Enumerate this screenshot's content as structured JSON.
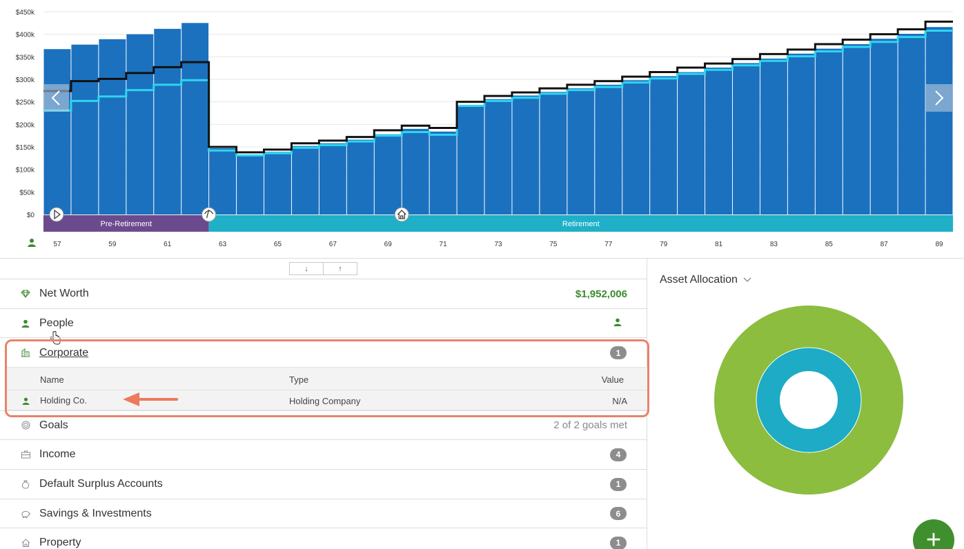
{
  "chart_data": {
    "type": "bar",
    "ylabels": [
      "$450k",
      "$400k",
      "$350k",
      "$300k",
      "$250k",
      "$200k",
      "$150k",
      "$100k",
      "$50k",
      "$0"
    ],
    "ylim": [
      0,
      450000
    ],
    "x_ages": [
      57,
      58,
      59,
      60,
      61,
      62,
      63,
      64,
      65,
      66,
      67,
      68,
      69,
      70,
      71,
      72,
      73,
      74,
      75,
      76,
      77,
      78,
      79,
      80,
      81,
      82,
      83,
      84,
      85,
      86,
      87,
      88,
      89
    ],
    "x_tick_labels": [
      "57",
      "59",
      "61",
      "63",
      "65",
      "67",
      "69",
      "71",
      "73",
      "75",
      "77",
      "79",
      "81",
      "83",
      "85",
      "87",
      "89"
    ],
    "series": [
      {
        "type": "bar",
        "values": [
          367000,
          377000,
          389000,
          400000,
          412000,
          425000,
          147000,
          133000,
          139000,
          152000,
          158000,
          166000,
          178000,
          190000,
          184000,
          242000,
          256000,
          264000,
          272000,
          280000,
          288000,
          298000,
          307000,
          316000,
          326000,
          336000,
          346000,
          357000,
          368000,
          378000,
          390000,
          401000,
          416000
        ]
      },
      {
        "type": "step",
        "values": [
          274000,
          296000,
          301000,
          314000,
          327000,
          338000,
          150000,
          138000,
          144000,
          158000,
          164000,
          172000,
          187000,
          197000,
          192000,
          250000,
          263000,
          271000,
          280000,
          288000,
          296000,
          306000,
          316000,
          326000,
          335000,
          345000,
          356000,
          366000,
          378000,
          388000,
          400000,
          411000,
          428000
        ]
      },
      {
        "type": "step",
        "values": [
          231000,
          252000,
          262000,
          276000,
          288000,
          298000,
          142000,
          131000,
          136000,
          148000,
          154000,
          162000,
          175000,
          183000,
          177000,
          241000,
          252000,
          259000,
          268000,
          276000,
          283000,
          293000,
          302000,
          312000,
          321000,
          331000,
          341000,
          351000,
          362000,
          372000,
          383000,
          394000,
          408000
        ]
      }
    ],
    "phases": [
      {
        "label": "Pre-Retirement",
        "color": "#6c4a8e",
        "start_index": 0,
        "end_index": 6
      },
      {
        "label": "Retirement",
        "color": "#1fb0c8",
        "start_index": 6,
        "end_index": 33
      }
    ],
    "colors": {
      "bar": "#1b71be",
      "line1": "#111111",
      "line2": "#2fd5f0"
    }
  },
  "nav": {
    "left": "<",
    "right": ">"
  },
  "toggles": {
    "down": "↓",
    "up": "↑"
  },
  "rows": {
    "net_worth": {
      "label": "Net Worth",
      "value": "$1,952,006"
    },
    "people": {
      "label": "People"
    },
    "corporate": {
      "label": "Corporate",
      "count": "1",
      "headers": {
        "name": "Name",
        "type": "Type",
        "value": "Value"
      },
      "items": [
        {
          "name": "Holding Co.",
          "type": "Holding Company",
          "value": "N/A"
        }
      ]
    },
    "goals": {
      "label": "Goals",
      "value": "2 of 2 goals met"
    },
    "income": {
      "label": "Income",
      "count": "4"
    },
    "surplus": {
      "label": "Default Surplus Accounts",
      "count": "1"
    },
    "savings": {
      "label": "Savings & Investments",
      "count": "6"
    },
    "property": {
      "label": "Property",
      "count": "1"
    }
  },
  "asset_allocation": {
    "title": "Asset Allocation",
    "rings": [
      {
        "color": "#8cbd3f"
      },
      {
        "color": "#1dabc5"
      }
    ]
  },
  "fab": {
    "label": "+"
  }
}
